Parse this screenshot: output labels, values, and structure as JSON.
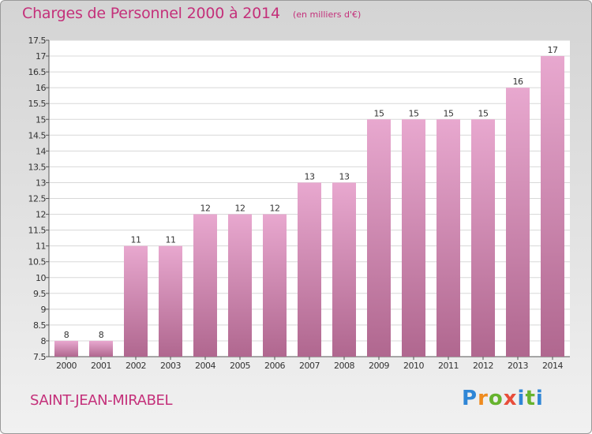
{
  "header": {
    "title": "Charges de Personnel 2000 à 2014",
    "subtitle": "(en milliers d'€)"
  },
  "footer": {
    "commune": "SAINT-JEAN-MIRABEL",
    "logo_text": "Proxiti"
  },
  "colors": {
    "title": "#c4307a",
    "bar_top": "#e8a8cf",
    "bar_bottom": "#b0678f",
    "plot_background": "#ffffff",
    "grid": "#d8d8d8"
  },
  "chart_data": {
    "type": "bar",
    "categories": [
      "2000",
      "2001",
      "2002",
      "2003",
      "2004",
      "2005",
      "2006",
      "2007",
      "2008",
      "2009",
      "2010",
      "2011",
      "2012",
      "2013",
      "2014"
    ],
    "values": [
      8,
      8,
      11,
      11,
      12,
      12,
      12,
      13,
      13,
      15,
      15,
      15,
      15,
      16,
      17
    ],
    "data_labels": [
      "8",
      "8",
      "11",
      "11",
      "12",
      "12",
      "12",
      "13",
      "13",
      "15",
      "15",
      "15",
      "15",
      "16",
      "17"
    ],
    "ylim": [
      7.5,
      17.5
    ],
    "yticks": [
      7.5,
      8,
      8.5,
      9,
      9.5,
      10,
      10.5,
      11,
      11.5,
      12,
      12.5,
      13,
      13.5,
      14,
      14.5,
      15,
      15.5,
      16,
      16.5,
      17,
      17.5
    ],
    "ytick_labels": [
      "7.5",
      "8",
      "8.5",
      "9",
      "9.5",
      "10",
      "10.5",
      "11",
      "11.5",
      "12",
      "12.5",
      "13",
      "13.5",
      "14",
      "14.5",
      "15",
      "15.5",
      "16",
      "16.5",
      "17",
      "17.5"
    ],
    "grid": true,
    "title": "Charges de Personnel 2000 à 2014",
    "xlabel": "",
    "ylabel": ""
  }
}
